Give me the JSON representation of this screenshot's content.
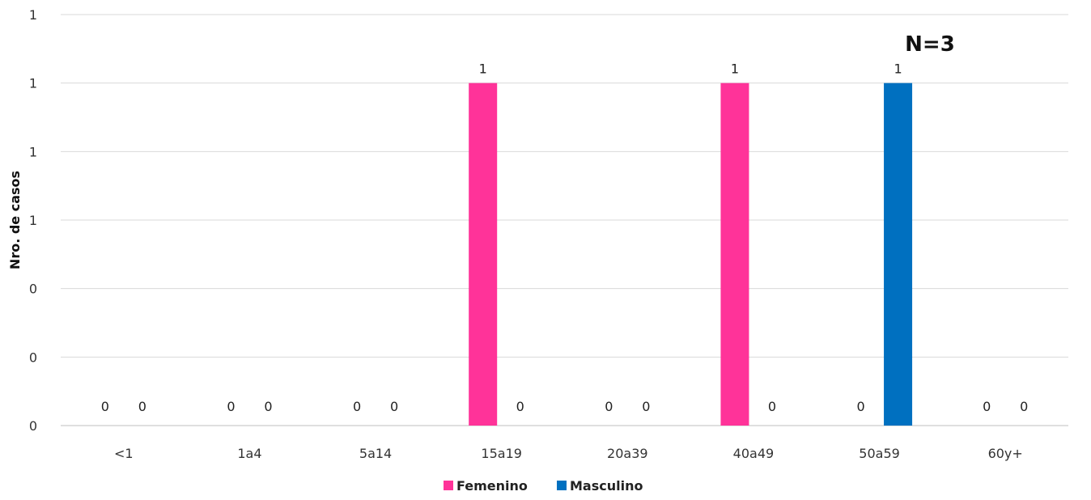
{
  "chart_data": {
    "type": "bar",
    "categories": [
      "<1",
      "1a4",
      "5a14",
      "15a19",
      "20a39",
      "40a49",
      "50a59",
      "60y+"
    ],
    "series": [
      {
        "name": "Femenino",
        "color": "#ff3399",
        "values": [
          0,
          0,
          0,
          1,
          0,
          1,
          0,
          0
        ]
      },
      {
        "name": "Masculino",
        "color": "#0070c0",
        "values": [
          0,
          0,
          0,
          0,
          0,
          0,
          1,
          0
        ]
      }
    ],
    "data_labels": [
      [
        "0",
        "0",
        "0",
        "1",
        "0",
        "1",
        "0",
        "0"
      ],
      [
        "0",
        "0",
        "0",
        "0",
        "0",
        "0",
        "1",
        "0"
      ]
    ],
    "title": "",
    "xlabel": "",
    "ylabel": "Nro. de casos",
    "ylim": [
      0,
      1.2
    ],
    "yticks": [
      0,
      0.2,
      0.4,
      0.6,
      0.8,
      1.0,
      1.2
    ],
    "ytick_labels": [
      "0",
      "0",
      "0",
      "1",
      "1",
      "1",
      "1"
    ],
    "grid": true,
    "legend_position": "bottom-center",
    "annotation": "N=3"
  }
}
